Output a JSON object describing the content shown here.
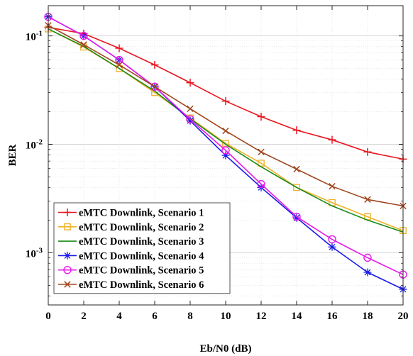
{
  "chart_data": {
    "type": "line",
    "xlabel": "Eb/N0 (dB)",
    "ylabel": "BER",
    "x": [
      0,
      2,
      4,
      6,
      8,
      10,
      12,
      14,
      16,
      18,
      20
    ],
    "xlim": [
      0,
      20
    ],
    "xticks": [
      0,
      2,
      4,
      6,
      8,
      10,
      12,
      14,
      16,
      18,
      20
    ],
    "ylim": [
      0.00033,
      0.19
    ],
    "yscale": "log",
    "yticks": [
      {
        "value": 0.1,
        "base": "10",
        "exp": "-1"
      },
      {
        "value": 0.01,
        "base": "10",
        "exp": "-2"
      },
      {
        "value": 0.001,
        "base": "10",
        "exp": "-3"
      }
    ],
    "grid": true,
    "legend_position": "bottom-left",
    "series": [
      {
        "name": "eMTC Downlink, Scenario 1",
        "color": "#e8161f",
        "marker": "plus",
        "values": [
          0.12,
          0.105,
          0.077,
          0.054,
          0.037,
          0.025,
          0.018,
          0.0135,
          0.011,
          0.0085,
          0.0073
        ]
      },
      {
        "name": "eMTC Downlink, Scenario 2",
        "color": "#eeb128",
        "marker": "square",
        "values": [
          0.116,
          0.079,
          0.05,
          0.03,
          0.0175,
          0.0102,
          0.0067,
          0.004,
          0.0029,
          0.00215,
          0.0016
        ]
      },
      {
        "name": "eMTC Downlink, Scenario 3",
        "color": "#188a18",
        "marker": "none",
        "values": [
          0.116,
          0.08,
          0.05,
          0.031,
          0.0172,
          0.01,
          0.0062,
          0.004,
          0.0027,
          0.002,
          0.00155
        ]
      },
      {
        "name": "eMTC Downlink, Scenario 4",
        "color": "#1a1ae8",
        "marker": "asterisk",
        "values": [
          0.15,
          0.1,
          0.06,
          0.034,
          0.0165,
          0.0079,
          0.004,
          0.0021,
          0.00113,
          0.00066,
          0.00046
        ]
      },
      {
        "name": "eMTC Downlink, Scenario 5",
        "color": "#e81ae8",
        "marker": "circle",
        "values": [
          0.15,
          0.1,
          0.06,
          0.034,
          0.017,
          0.0088,
          0.0043,
          0.00215,
          0.00133,
          0.0009,
          0.00063
        ]
      },
      {
        "name": "eMTC Downlink, Scenario 6",
        "color": "#a0461e",
        "marker": "x",
        "values": [
          0.125,
          0.083,
          0.054,
          0.034,
          0.0213,
          0.0133,
          0.0085,
          0.0059,
          0.0041,
          0.0031,
          0.0027
        ]
      }
    ]
  }
}
